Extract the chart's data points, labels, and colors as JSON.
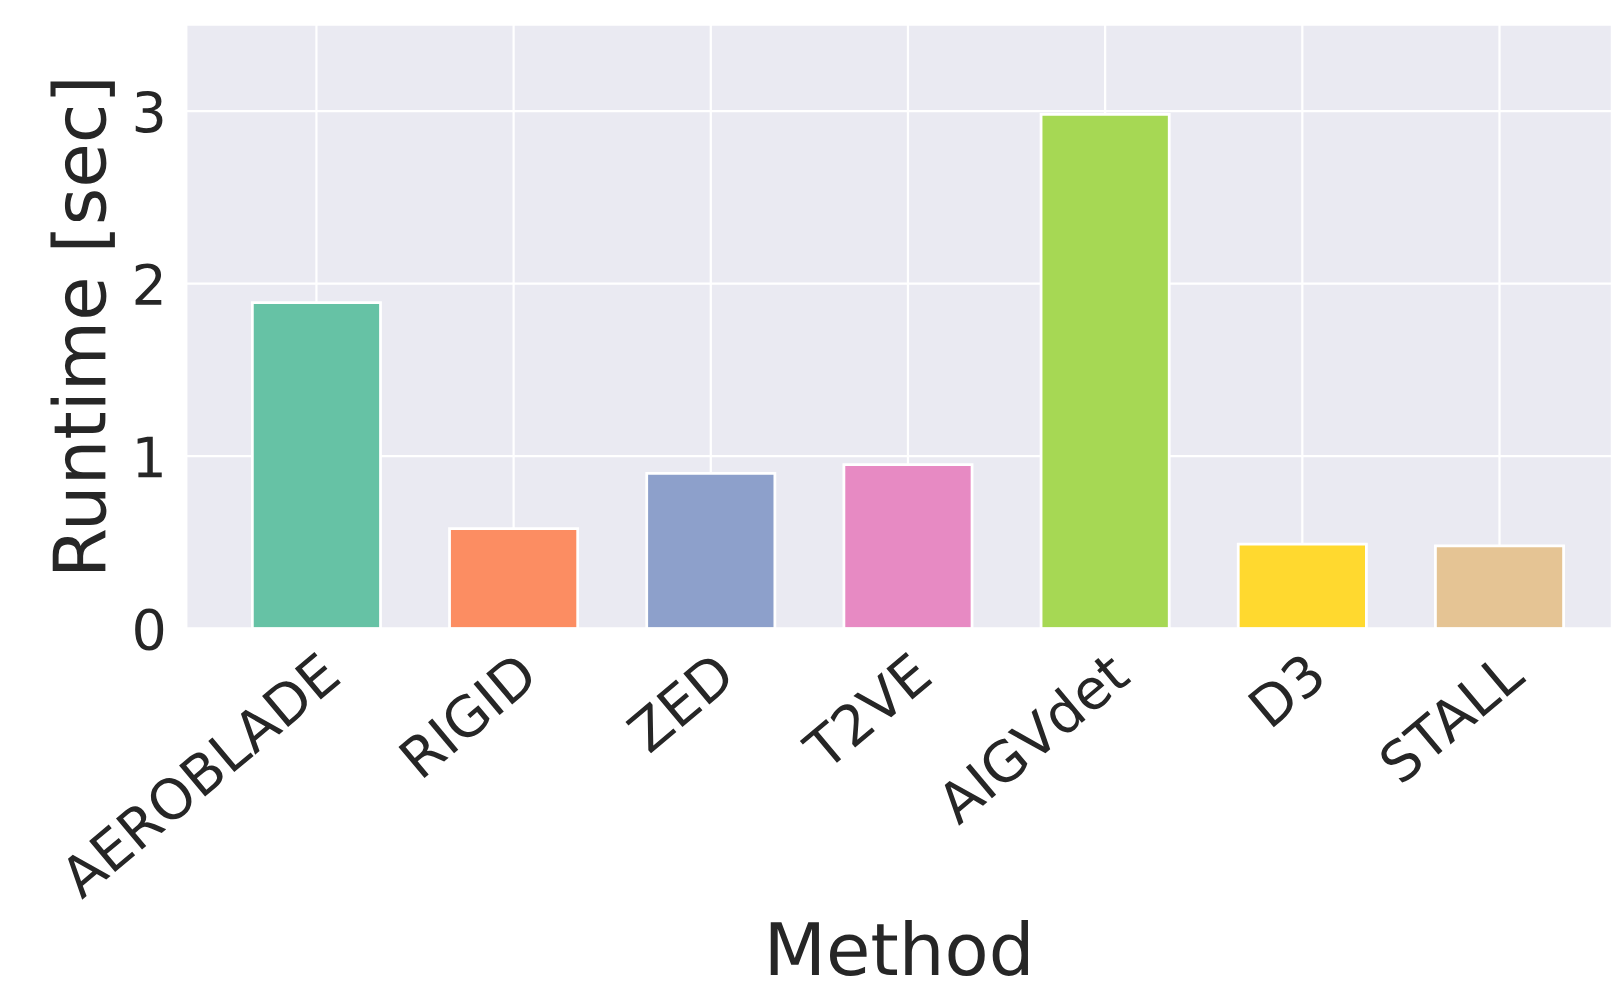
{
  "chart_data": {
    "type": "bar",
    "xlabel": "Method",
    "ylabel": "Runtime [sec]",
    "categories": [
      "AEROBLADE",
      "RIGID",
      "ZED",
      "T2VE",
      "AIGVdet",
      "D3",
      "STALL"
    ],
    "values": [
      1.89,
      0.58,
      0.9,
      0.95,
      2.98,
      0.49,
      0.48
    ],
    "colors": [
      "#66c2a5",
      "#fc8d62",
      "#8da0cb",
      "#e78ac3",
      "#a6d854",
      "#ffd92f",
      "#e5c494"
    ],
    "ylim": [
      0,
      3.5
    ],
    "yticks": [
      0,
      1,
      2,
      3
    ],
    "grid": true
  }
}
